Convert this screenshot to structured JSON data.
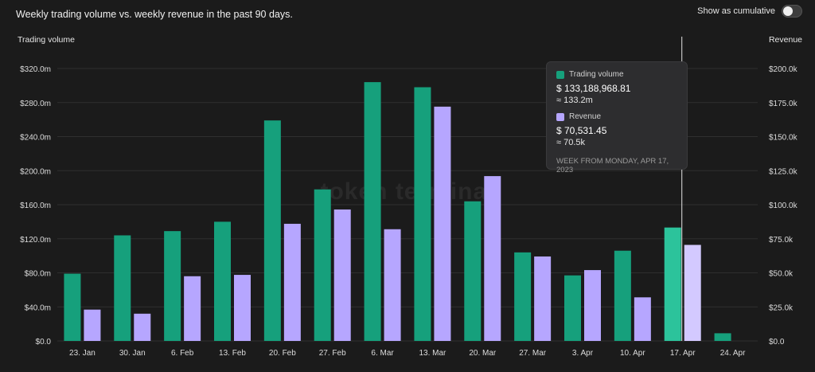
{
  "header": {
    "title": "Weekly trading volume vs. weekly revenue in the past 90 days.",
    "toggle_label": "Show as cumulative"
  },
  "colors": {
    "volume": "#16a07c",
    "revenue": "#b6a6ff",
    "volume_hover": "#2cc39b",
    "revenue_hover": "#d3c9ff",
    "hover_line": "#e6e6e6"
  },
  "watermark": "token terminal",
  "tooltip": {
    "series1_label": "Trading volume",
    "series1_value": "$ 133,188,968.81",
    "series1_approx": "≈ 133.2m",
    "series2_label": "Revenue",
    "series2_value": "$ 70,531.45",
    "series2_approx": "≈ 70.5k",
    "week": "WEEK FROM MONDAY, APR 17, 2023"
  },
  "chart_data": {
    "type": "bar",
    "categories": [
      "23. Jan",
      "30. Jan",
      "6. Feb",
      "13. Feb",
      "20. Feb",
      "27. Feb",
      "6. Mar",
      "13. Mar",
      "20. Mar",
      "27. Mar",
      "3. Apr",
      "10. Apr",
      "17. Apr",
      "24. Apr"
    ],
    "series": [
      {
        "name": "Trading volume",
        "axis": "left",
        "unit": "m",
        "values": [
          79,
          124,
          129,
          140,
          259,
          178,
          304,
          298,
          164,
          104,
          77,
          106,
          133.2,
          9
        ]
      },
      {
        "name": "Revenue",
        "axis": "right",
        "unit": "k",
        "values": [
          23,
          20,
          47.5,
          48.5,
          86,
          96.5,
          82,
          172,
          121,
          62,
          52,
          32,
          70.5,
          0
        ]
      }
    ],
    "ylabel_left": "Trading volume",
    "ylabel_right": "Revenue",
    "ylim_left": [
      0,
      320
    ],
    "ylim_right": [
      0,
      200
    ],
    "yticks_left": [
      "$0.0",
      "$40.0m",
      "$80.0m",
      "$120.0m",
      "$160.0m",
      "$200.0m",
      "$240.0m",
      "$280.0m",
      "$320.0m"
    ],
    "yticks_right": [
      "$0.0",
      "$25.0k",
      "$50.0k",
      "$75.0k",
      "$100.0k",
      "$125.0k",
      "$150.0k",
      "$175.0k",
      "$200.0k"
    ],
    "highlighted_category": "17. Apr",
    "grid": true
  }
}
